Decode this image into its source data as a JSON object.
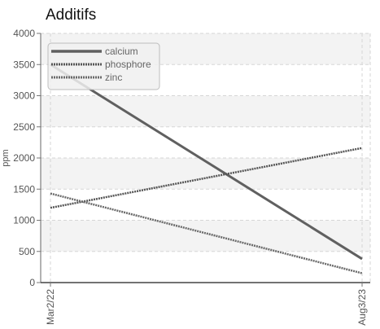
{
  "chart_data": {
    "type": "line",
    "title": "Additifs",
    "xlabel": "",
    "ylabel": "ppm",
    "x": [
      "Mar2/22",
      "Aug3/23"
    ],
    "ylim": [
      0,
      4000
    ],
    "yticks": [
      0,
      500,
      1000,
      1500,
      2000,
      2500,
      3000,
      3500,
      4000
    ],
    "grid": true,
    "legend_position": "top-left",
    "series": [
      {
        "name": "calcium",
        "values": [
          3500,
          380
        ],
        "color": "#606060",
        "style": "solid"
      },
      {
        "name": "phosphore",
        "values": [
          1200,
          2160
        ],
        "color": "#555555",
        "style": "dotted"
      },
      {
        "name": "zinc",
        "values": [
          1430,
          150
        ],
        "color": "#6a6a6a",
        "style": "dotted"
      }
    ]
  }
}
